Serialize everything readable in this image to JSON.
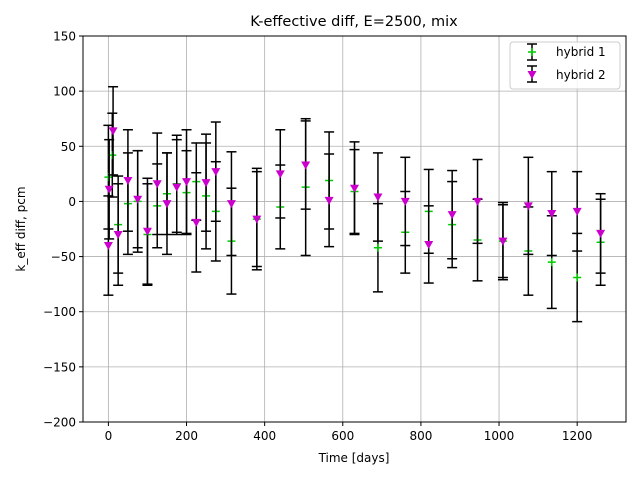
{
  "chart_data": {
    "type": "scatter",
    "title": "K-effective diff, E=2500, mix",
    "xlabel": "Time [days]",
    "ylabel": "k_eff diff, pcm",
    "xlim": [
      -65,
      1325
    ],
    "ylim": [
      -200,
      150
    ],
    "xticks": [
      0,
      200,
      400,
      600,
      800,
      1000,
      1200
    ],
    "yticks": [
      -200,
      -150,
      -100,
      -50,
      0,
      50,
      100,
      150
    ],
    "grid": true,
    "legend_position": "upper right",
    "series": [
      {
        "name": "hybrid 1",
        "marker": "plus",
        "color": "#00cc00",
        "points": [
          {
            "x": 0,
            "y": 22,
            "err": 47
          },
          {
            "x": 10,
            "y": 42,
            "err": 38
          },
          {
            "x": 25,
            "y": -21,
            "err": 44
          },
          {
            "x": 50,
            "y": -2,
            "err": 46
          },
          {
            "x": 75,
            "y": 0,
            "err": 46
          },
          {
            "x": 100,
            "y": -30,
            "err": 46
          },
          {
            "x": 125,
            "y": -4,
            "err": 38
          },
          {
            "x": 150,
            "y": 7,
            "err": 37
          },
          {
            "x": 175,
            "y": 16,
            "err": 44
          },
          {
            "x": 200,
            "y": 8,
            "err": 38
          },
          {
            "x": 225,
            "y": 18,
            "err": 35
          },
          {
            "x": 250,
            "y": 5,
            "err": 48
          },
          {
            "x": 275,
            "y": -9,
            "err": 45
          },
          {
            "x": 315,
            "y": -36,
            "err": 48
          },
          {
            "x": 380,
            "y": -16,
            "err": 43
          },
          {
            "x": 440,
            "y": -5,
            "err": 38
          },
          {
            "x": 505,
            "y": 13,
            "err": 62
          },
          {
            "x": 565,
            "y": 19,
            "err": 44
          },
          {
            "x": 630,
            "y": 9,
            "err": 38
          },
          {
            "x": 690,
            "y": -42,
            "err": 40
          },
          {
            "x": 760,
            "y": -28,
            "err": 37
          },
          {
            "x": 820,
            "y": -9,
            "err": 38
          },
          {
            "x": 880,
            "y": -21,
            "err": 39
          },
          {
            "x": 945,
            "y": -35,
            "err": 37
          },
          {
            "x": 1010,
            "y": -36,
            "err": 35
          },
          {
            "x": 1075,
            "y": -45,
            "err": 40
          },
          {
            "x": 1135,
            "y": -55,
            "err": 42
          },
          {
            "x": 1200,
            "y": -69,
            "err": 40
          },
          {
            "x": 1260,
            "y": -37,
            "err": 39
          }
        ]
      },
      {
        "name": "hybrid 2",
        "marker": "triangle-down",
        "color": "#cc00cc",
        "points": [
          {
            "x": 0,
            "y": -40,
            "err": 45
          },
          {
            "x": 2,
            "y": 11,
            "err": 45
          },
          {
            "x": 12,
            "y": 64,
            "err": 40
          },
          {
            "x": 25,
            "y": -30,
            "err": 46
          },
          {
            "x": 50,
            "y": 19,
            "err": 46
          },
          {
            "x": 75,
            "y": 2,
            "err": 44
          },
          {
            "x": 100,
            "y": -27,
            "err": 48
          },
          {
            "x": 125,
            "y": 16,
            "err": 46
          },
          {
            "x": 150,
            "y": -2,
            "err": 46
          },
          {
            "x": 175,
            "y": 13,
            "err": 43
          },
          {
            "x": 200,
            "y": 18,
            "err": 47
          },
          {
            "x": 225,
            "y": -19,
            "err": 45
          },
          {
            "x": 250,
            "y": 17,
            "err": 44
          },
          {
            "x": 275,
            "y": 27,
            "err": 45
          },
          {
            "x": 315,
            "y": -2,
            "err": 47
          },
          {
            "x": 380,
            "y": -16,
            "err": 46
          },
          {
            "x": 440,
            "y": 25,
            "err": 40
          },
          {
            "x": 505,
            "y": 33,
            "err": 40
          },
          {
            "x": 565,
            "y": 1,
            "err": 42
          },
          {
            "x": 630,
            "y": 12,
            "err": 42
          },
          {
            "x": 690,
            "y": 4,
            "err": 40
          },
          {
            "x": 760,
            "y": 0,
            "err": 40
          },
          {
            "x": 820,
            "y": -39,
            "err": 35
          },
          {
            "x": 880,
            "y": -12,
            "err": 40
          },
          {
            "x": 945,
            "y": 0,
            "err": 38
          },
          {
            "x": 1010,
            "y": -36,
            "err": 33
          },
          {
            "x": 1075,
            "y": -4,
            "err": 44
          },
          {
            "x": 1135,
            "y": -11,
            "err": 38
          },
          {
            "x": 1200,
            "y": -9,
            "err": 36
          },
          {
            "x": 1260,
            "y": -29,
            "err": 36
          }
        ]
      }
    ]
  }
}
